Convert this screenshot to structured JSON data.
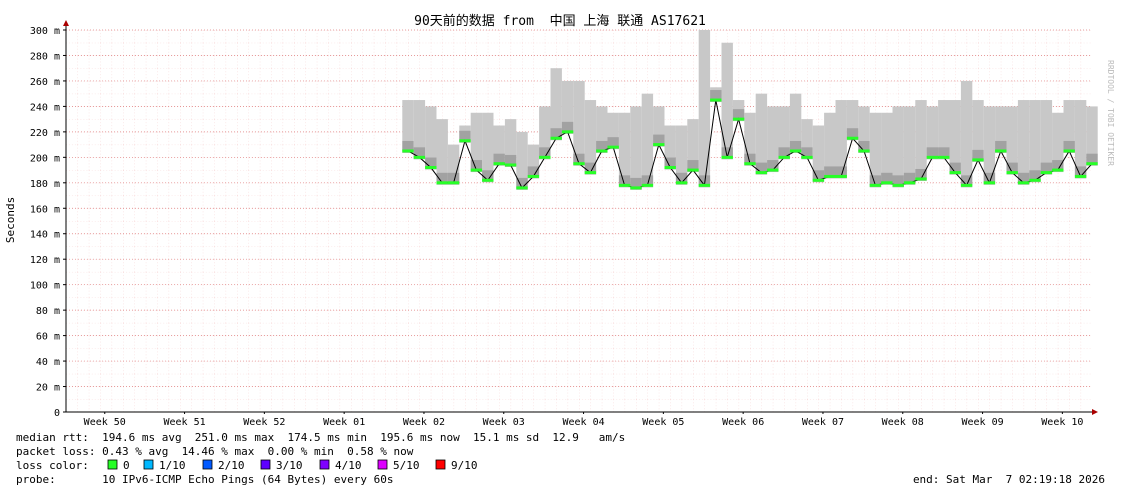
{
  "chart_data": {
    "type": "smoke",
    "title": "90天前的数据 from  中国 上海 联通 AS17621",
    "y_label": "Seconds",
    "side_note": "RRDTOOL / TOBI OETIKER",
    "xlim": [
      0,
      90
    ],
    "xticks": [
      {
        "value": 3.4,
        "label": "Week 50"
      },
      {
        "value": 10.4,
        "label": "Week 51"
      },
      {
        "value": 17.4,
        "label": "Week 52"
      },
      {
        "value": 24.4,
        "label": "Week 01"
      },
      {
        "value": 31.4,
        "label": "Week 02"
      },
      {
        "value": 38.4,
        "label": "Week 03"
      },
      {
        "value": 45.4,
        "label": "Week 04"
      },
      {
        "value": 52.4,
        "label": "Week 05"
      },
      {
        "value": 59.4,
        "label": "Week 06"
      },
      {
        "value": 66.4,
        "label": "Week 07"
      },
      {
        "value": 73.4,
        "label": "Week 08"
      },
      {
        "value": 80.4,
        "label": "Week 09"
      },
      {
        "value": 87.4,
        "label": "Week 10"
      }
    ],
    "ylim": [
      0,
      0.3
    ],
    "yticks": [
      0,
      {
        "value": 0.02,
        "label": "20 m"
      },
      {
        "value": 0.04,
        "label": "40 m"
      },
      {
        "value": 0.06,
        "label": "60 m"
      },
      {
        "value": 0.08,
        "label": "80 m"
      },
      {
        "value": 0.1,
        "label": "100 m"
      },
      {
        "value": 0.12,
        "label": "120 m"
      },
      {
        "value": 0.14,
        "label": "140 m"
      },
      {
        "value": 0.16,
        "label": "160 m"
      },
      {
        "value": 0.18,
        "label": "180 m"
      },
      {
        "value": 0.2,
        "label": "200 m"
      },
      {
        "value": 0.22,
        "label": "220 m"
      },
      {
        "value": 0.24,
        "label": "240 m"
      },
      {
        "value": 0.26,
        "label": "260 m"
      },
      {
        "value": 0.28,
        "label": "280 m"
      },
      {
        "value": 0.3,
        "label": "300 m"
      }
    ],
    "grid": true,
    "x": [
      30,
      31,
      32,
      33,
      34,
      35,
      36,
      37,
      38,
      39,
      40,
      41,
      42,
      43,
      44,
      45,
      46,
      47,
      48,
      49,
      50,
      51,
      52,
      53,
      54,
      55,
      56,
      57,
      58,
      59,
      60,
      61,
      62,
      63,
      64,
      65,
      66,
      67,
      68,
      69,
      70,
      71,
      72,
      73,
      74,
      75,
      76,
      77,
      78,
      79,
      80,
      81,
      82,
      83,
      84,
      85,
      86,
      87,
      88,
      89,
      90
    ],
    "series": [
      {
        "name": "median",
        "color": "#000000",
        "values": [
          0.205,
          0.2,
          0.192,
          0.18,
          0.18,
          0.213,
          0.19,
          0.182,
          0.195,
          0.194,
          0.176,
          0.185,
          0.2,
          0.215,
          0.22,
          0.195,
          0.188,
          0.205,
          0.208,
          0.178,
          0.176,
          0.178,
          0.21,
          0.192,
          0.18,
          0.19,
          0.178,
          0.245,
          0.2,
          0.23,
          0.195,
          0.188,
          0.19,
          0.2,
          0.205,
          0.2,
          0.182,
          0.185,
          0.185,
          0.215,
          0.205,
          0.178,
          0.18,
          0.178,
          0.18,
          0.183,
          0.2,
          0.2,
          0.188,
          0.178,
          0.198,
          0.18,
          0.205,
          0.188,
          0.18,
          0.182,
          0.188,
          0.19,
          0.205,
          0.185,
          0.195
        ]
      },
      {
        "name": "max",
        "color": "#c8c8c8",
        "values": [
          0.245,
          0.245,
          0.24,
          0.23,
          0.21,
          0.225,
          0.235,
          0.235,
          0.225,
          0.23,
          0.22,
          0.21,
          0.24,
          0.27,
          0.26,
          0.26,
          0.245,
          0.24,
          0.235,
          0.235,
          0.24,
          0.25,
          0.24,
          0.225,
          0.225,
          0.23,
          0.3,
          0.255,
          0.29,
          0.245,
          0.235,
          0.25,
          0.24,
          0.24,
          0.25,
          0.23,
          0.225,
          0.235,
          0.245,
          0.245,
          0.24,
          0.235,
          0.235,
          0.24,
          0.24,
          0.245,
          0.24,
          0.245,
          0.245,
          0.26,
          0.245,
          0.24,
          0.24,
          0.24,
          0.245,
          0.245,
          0.245,
          0.235,
          0.245,
          0.245,
          0.24
        ]
      }
    ],
    "stats": {
      "median_rtt": "median rtt:  194.6 ms avg  251.0 ms max  174.5 ms min  195.6 ms now  15.1 ms sd  12.9   am/s",
      "packet_loss": "packet loss: 0.43 % avg  14.46 % max  0.00 % min  0.58 % now",
      "loss_color_label": "loss color:",
      "loss_colors": [
        {
          "label": "0",
          "color": "#26ff26"
        },
        {
          "label": "1/10",
          "color": "#00b8ff"
        },
        {
          "label": "2/10",
          "color": "#0059ff"
        },
        {
          "label": "3/10",
          "color": "#5e00ff"
        },
        {
          "label": "4/10",
          "color": "#7e00ff"
        },
        {
          "label": "5/10",
          "color": "#dd00ff"
        },
        {
          "label": "9/10",
          "color": "#ff0000"
        }
      ],
      "probe": "probe:       10 IPv6-ICMP Echo Pings (64 Bytes) every 60s",
      "end": "end: Sat Mar  7 02:19:18 2026"
    }
  }
}
